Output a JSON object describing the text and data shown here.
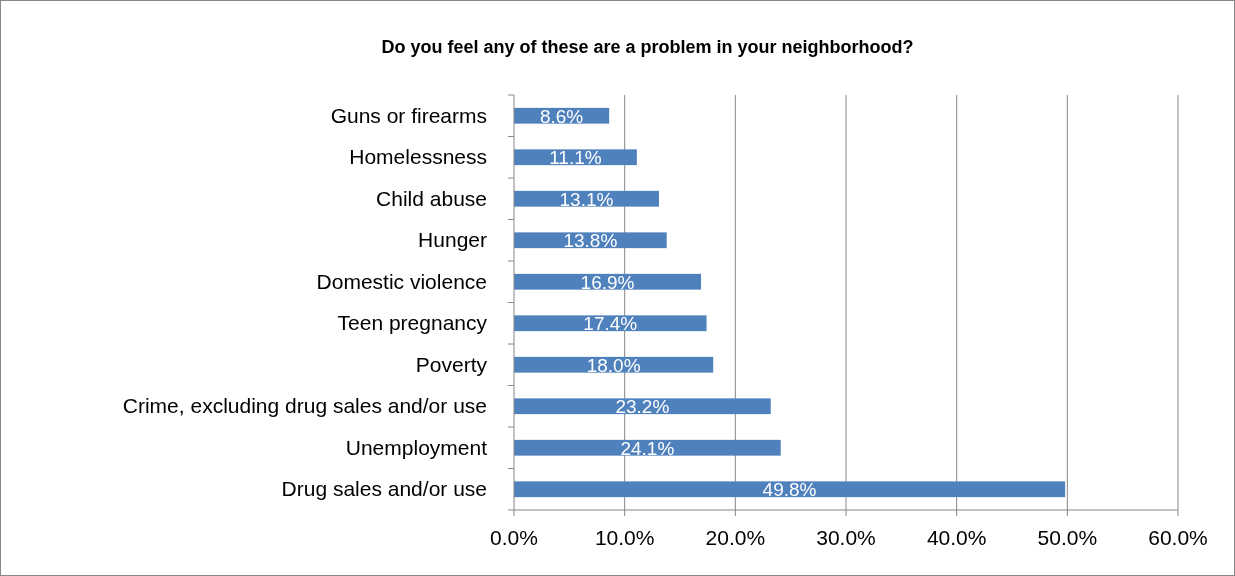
{
  "chart_data": {
    "type": "bar",
    "orientation": "horizontal",
    "title": "Do you feel any of these are a problem in your neighborhood?",
    "categories": [
      "Guns or firearms",
      "Homelessness",
      "Child abuse",
      "Hunger",
      "Domestic violence",
      "Teen pregnancy",
      "Poverty",
      "Crime, excluding drug sales and/or use",
      "Unemployment",
      "Drug sales and/or use"
    ],
    "values": [
      8.6,
      11.1,
      13.1,
      13.8,
      16.9,
      17.4,
      18.0,
      23.2,
      24.1,
      49.8
    ],
    "value_labels": [
      "8.6%",
      "11.1%",
      "13.1%",
      "13.8%",
      "16.9%",
      "17.4%",
      "18.0%",
      "23.2%",
      "24.1%",
      "49.8%"
    ],
    "color": "#4f81bd",
    "xlim": [
      0,
      60
    ],
    "xticks": [
      {
        "value": 0,
        "label": "0.0%"
      },
      {
        "value": 10,
        "label": "10.0%"
      },
      {
        "value": 20,
        "label": "20.0%"
      },
      {
        "value": 30,
        "label": "30.0%"
      },
      {
        "value": 40,
        "label": "40.0%"
      },
      {
        "value": 50,
        "label": "50.0%"
      },
      {
        "value": 60,
        "label": "60.0%"
      }
    ],
    "grid": "x"
  }
}
